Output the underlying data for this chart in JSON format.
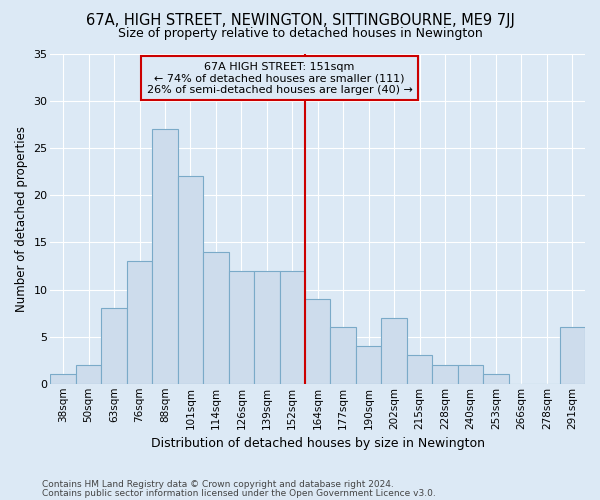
{
  "title": "67A, HIGH STREET, NEWINGTON, SITTINGBOURNE, ME9 7JJ",
  "subtitle": "Size of property relative to detached houses in Newington",
  "xlabel": "Distribution of detached houses by size in Newington",
  "ylabel": "Number of detached properties",
  "categories": [
    "38sqm",
    "50sqm",
    "63sqm",
    "76sqm",
    "88sqm",
    "101sqm",
    "114sqm",
    "126sqm",
    "139sqm",
    "152sqm",
    "164sqm",
    "177sqm",
    "190sqm",
    "202sqm",
    "215sqm",
    "228sqm",
    "240sqm",
    "253sqm",
    "266sqm",
    "278sqm",
    "291sqm"
  ],
  "values": [
    1,
    2,
    8,
    13,
    27,
    22,
    14,
    12,
    12,
    12,
    9,
    6,
    4,
    7,
    3,
    2,
    2,
    1,
    0,
    0,
    6
  ],
  "bar_color": "#cddcec",
  "bar_edgecolor": "#7aaac8",
  "marker_index": 9,
  "marker_color": "#cc0000",
  "ylim": [
    0,
    35
  ],
  "yticks": [
    0,
    5,
    10,
    15,
    20,
    25,
    30,
    35
  ],
  "annotation_text": "67A HIGH STREET: 151sqm\n← 74% of detached houses are smaller (111)\n26% of semi-detached houses are larger (40) →",
  "annotation_box_edgecolor": "#cc0000",
  "background_color": "#dce9f5",
  "grid_color": "#ffffff",
  "footer_line1": "Contains HM Land Registry data © Crown copyright and database right 2024.",
  "footer_line2": "Contains public sector information licensed under the Open Government Licence v3.0."
}
